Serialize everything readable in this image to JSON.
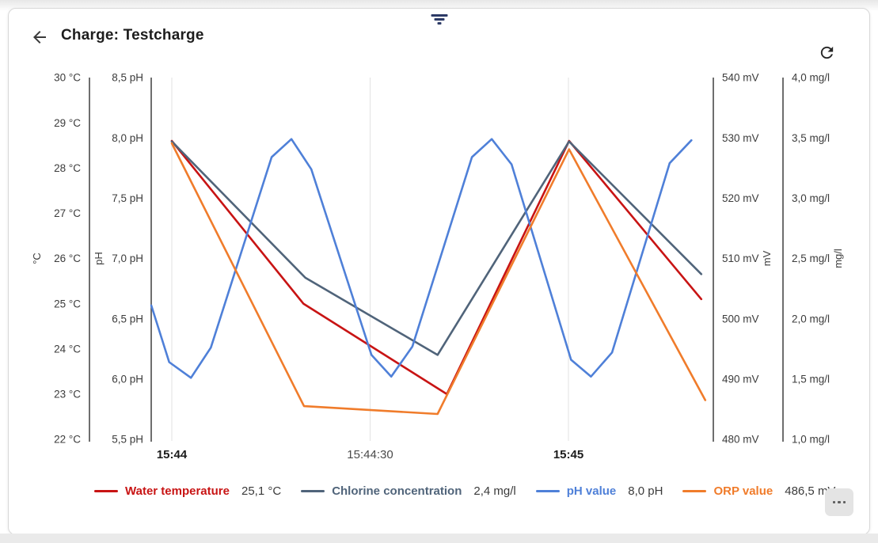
{
  "header": {
    "title": "Charge: Testcharge"
  },
  "icons": {
    "top_center": "filter-icon",
    "header_left": "back-arrow-icon",
    "header_right": "refresh-icon",
    "bottom_right": "more-ellipsis-icon"
  },
  "footer": {
    "more_button_label": "..."
  },
  "chart_data": {
    "type": "line",
    "grid": "vertical-only",
    "legend_position": "bottom",
    "x_axis": {
      "unit": "time",
      "ticks": [
        {
          "t": 0,
          "label": "15:44",
          "bold": true
        },
        {
          "t": 30,
          "label": "15:44:30",
          "bold": false
        },
        {
          "t": 60,
          "label": "15:45",
          "bold": true
        }
      ]
    },
    "axes": [
      {
        "id": "temp",
        "title": "°C",
        "unit": "°C",
        "min": 22,
        "max": 30,
        "step": 1,
        "side": "left",
        "ticks": [
          {
            "v": 30,
            "label": "30 °C"
          },
          {
            "v": 29,
            "label": "29 °C"
          },
          {
            "v": 28,
            "label": "28 °C"
          },
          {
            "v": 27,
            "label": "27 °C"
          },
          {
            "v": 26,
            "label": "26 °C"
          },
          {
            "v": 25,
            "label": "25 °C"
          },
          {
            "v": 24,
            "label": "24 °C"
          },
          {
            "v": 23,
            "label": "23 °C"
          },
          {
            "v": 22,
            "label": "22 °C"
          }
        ]
      },
      {
        "id": "ph",
        "title": "pH",
        "unit": "pH",
        "min": 5.5,
        "max": 8.5,
        "step": 0.5,
        "side": "left",
        "ticks": [
          {
            "v": 8.5,
            "label": "8,5 pH"
          },
          {
            "v": 8.0,
            "label": "8,0 pH"
          },
          {
            "v": 7.5,
            "label": "7,5 pH"
          },
          {
            "v": 7.0,
            "label": "7,0 pH"
          },
          {
            "v": 6.5,
            "label": "6,5 pH"
          },
          {
            "v": 6.0,
            "label": "6,0 pH"
          },
          {
            "v": 5.5,
            "label": "5,5 pH"
          }
        ]
      },
      {
        "id": "orp",
        "title": "mV",
        "unit": "mV",
        "min": 480,
        "max": 540,
        "step": 10,
        "side": "right",
        "ticks": [
          {
            "v": 540,
            "label": "540 mV"
          },
          {
            "v": 530,
            "label": "530 mV"
          },
          {
            "v": 520,
            "label": "520 mV"
          },
          {
            "v": 510,
            "label": "510 mV"
          },
          {
            "v": 500,
            "label": "500 mV"
          },
          {
            "v": 490,
            "label": "490 mV"
          },
          {
            "v": 480,
            "label": "480 mV"
          }
        ]
      },
      {
        "id": "chlorine",
        "title": "mg/l",
        "unit": "mg/l",
        "min": 1.0,
        "max": 4.0,
        "step": 0.5,
        "side": "right",
        "ticks": [
          {
            "v": 4.0,
            "label": "4,0 mg/l"
          },
          {
            "v": 3.5,
            "label": "3,5 mg/l"
          },
          {
            "v": 3.0,
            "label": "3,0 mg/l"
          },
          {
            "v": 2.5,
            "label": "2,5 mg/l"
          },
          {
            "v": 2.0,
            "label": "2,0 mg/l"
          },
          {
            "v": 1.5,
            "label": "1,5 mg/l"
          },
          {
            "v": 1.0,
            "label": "1,0 mg/l"
          }
        ]
      }
    ],
    "series": [
      {
        "name": "Water temperature",
        "axis": "temp",
        "color": "#c81414",
        "current_value": "25,1 °C",
        "points": [
          [
            0,
            28.6
          ],
          [
            19.9,
            25.0
          ],
          [
            41.6,
            23.0
          ],
          [
            60.1,
            28.6
          ],
          [
            80.1,
            25.1
          ]
        ]
      },
      {
        "name": "Chlorine concentration",
        "axis": "chlorine",
        "color": "#50647a",
        "current_value": "2,4 mg/l",
        "points": [
          [
            0,
            3.47
          ],
          [
            20.2,
            2.34
          ],
          [
            40.2,
            1.7
          ],
          [
            60.1,
            3.47
          ],
          [
            80.1,
            2.37
          ]
        ]
      },
      {
        "name": "pH value",
        "axis": "ph",
        "color": "#4f80d8",
        "current_value": "8,0 pH",
        "points": [
          [
            -3.1,
            6.61
          ],
          [
            -0.4,
            6.14
          ],
          [
            2.9,
            6.01
          ],
          [
            5.9,
            6.26
          ],
          [
            15.1,
            7.84
          ],
          [
            18.1,
            7.99
          ],
          [
            21.1,
            7.74
          ],
          [
            30.2,
            6.2
          ],
          [
            33.2,
            6.02
          ],
          [
            36.4,
            6.27
          ],
          [
            45.4,
            7.84
          ],
          [
            48.4,
            7.99
          ],
          [
            51.4,
            7.78
          ],
          [
            60.4,
            6.16
          ],
          [
            63.4,
            6.02
          ],
          [
            66.6,
            6.22
          ],
          [
            75.3,
            7.79
          ],
          [
            78.6,
            7.98
          ]
        ]
      },
      {
        "name": "ORP value",
        "axis": "orp",
        "color": "#f07c2b",
        "current_value": "486,5 mV",
        "points": [
          [
            0,
            529.1
          ],
          [
            20,
            485.5
          ],
          [
            40.2,
            484.2
          ],
          [
            60.1,
            528.1
          ],
          [
            80.7,
            486.5
          ]
        ]
      }
    ]
  }
}
